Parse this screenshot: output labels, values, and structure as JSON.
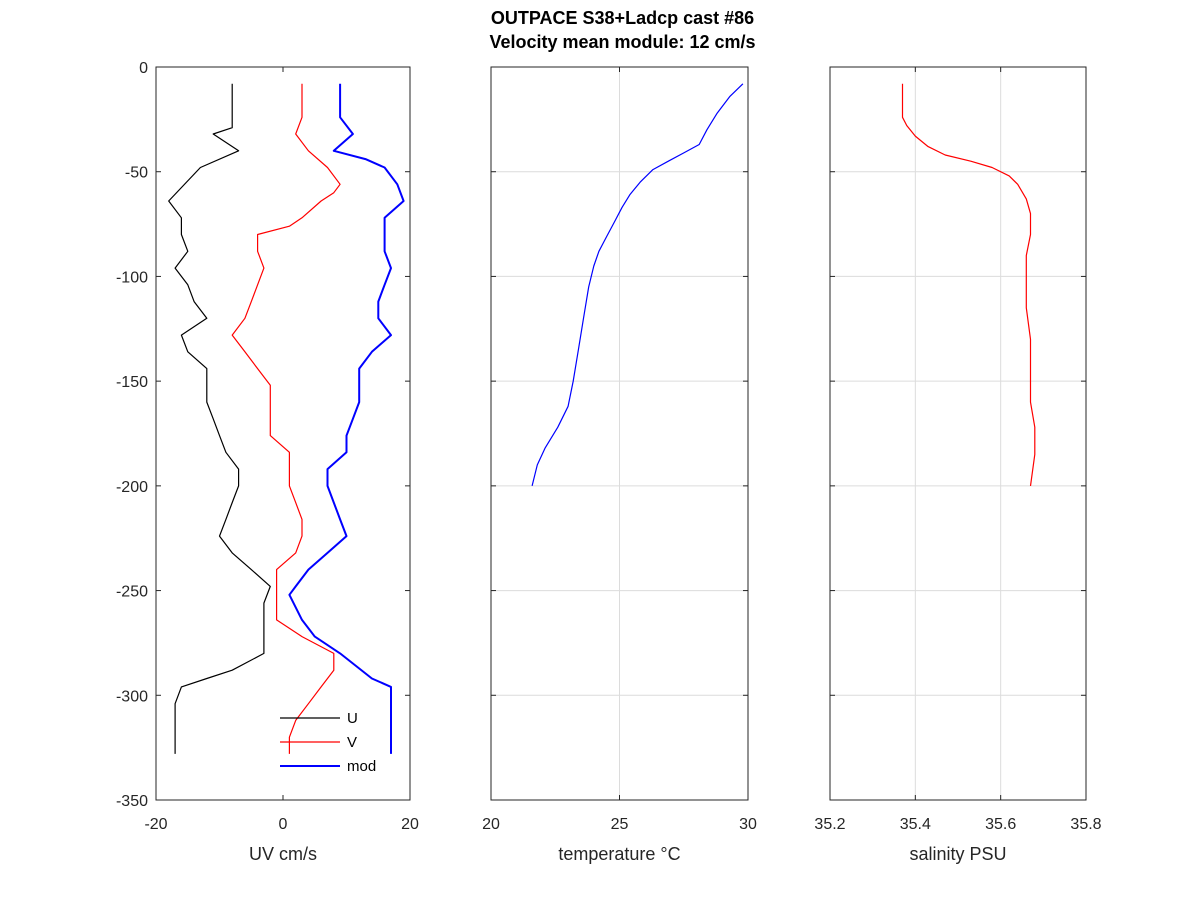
{
  "figure": {
    "title_line1": "OUTPACE S38+Ladcp cast #86",
    "title_line2": "Velocity mean module:  12 cm/s"
  },
  "chart_data": [
    {
      "type": "line",
      "title": "",
      "xlabel": "UV cm/s",
      "ylabel": "",
      "xlim": [
        -20,
        20
      ],
      "ylim": [
        -350,
        0
      ],
      "x_ticks": [
        -20,
        0,
        20
      ],
      "y_ticks": [
        0,
        -50,
        -100,
        -150,
        -200,
        -250,
        -300,
        -350
      ],
      "grid": false,
      "legend": "bottom-right",
      "series": [
        {
          "name": "U",
          "color": "#000000",
          "points": [
            [
              -8,
              -8
            ],
            [
              -8,
              -29
            ],
            [
              -11,
              -32
            ],
            [
              -7,
              -40
            ],
            [
              -13,
              -48
            ],
            [
              -18,
              -64
            ],
            [
              -16,
              -72
            ],
            [
              -16,
              -80
            ],
            [
              -15,
              -88
            ],
            [
              -17,
              -96
            ],
            [
              -15,
              -104
            ],
            [
              -14,
              -112
            ],
            [
              -12,
              -120
            ],
            [
              -16,
              -128
            ],
            [
              -15,
              -136
            ],
            [
              -12,
              -144
            ],
            [
              -12,
              -152
            ],
            [
              -12,
              -160
            ],
            [
              -11,
              -168
            ],
            [
              -10,
              -176
            ],
            [
              -9,
              -184
            ],
            [
              -7,
              -192
            ],
            [
              -7,
              -200
            ],
            [
              -8,
              -208
            ],
            [
              -9,
              -216
            ],
            [
              -10,
              -224
            ],
            [
              -8,
              -232
            ],
            [
              -5,
              -240
            ],
            [
              -2,
              -248
            ],
            [
              -3,
              -256
            ],
            [
              -3,
              -264
            ],
            [
              -3,
              -272
            ],
            [
              -3,
              -280
            ],
            [
              -8,
              -288
            ],
            [
              -12,
              -292
            ],
            [
              -16,
              -296
            ],
            [
              -17,
              -304
            ],
            [
              -17,
              -312
            ],
            [
              -17,
              -320
            ],
            [
              -17,
              -328
            ]
          ]
        },
        {
          "name": "V",
          "color": "#ff0000",
          "points": [
            [
              3,
              -8
            ],
            [
              3,
              -16
            ],
            [
              3,
              -24
            ],
            [
              2,
              -32
            ],
            [
              4,
              -40
            ],
            [
              7,
              -48
            ],
            [
              9,
              -56
            ],
            [
              8,
              -60
            ],
            [
              6,
              -64
            ],
            [
              3,
              -72
            ],
            [
              1,
              -76
            ],
            [
              -4,
              -80
            ],
            [
              -4,
              -88
            ],
            [
              -3,
              -96
            ],
            [
              -4,
              -104
            ],
            [
              -5,
              -112
            ],
            [
              -6,
              -120
            ],
            [
              -8,
              -128
            ],
            [
              -6,
              -136
            ],
            [
              -4,
              -144
            ],
            [
              -2,
              -152
            ],
            [
              -2,
              -160
            ],
            [
              -2,
              -168
            ],
            [
              -2,
              -176
            ],
            [
              1,
              -184
            ],
            [
              1,
              -192
            ],
            [
              1,
              -200
            ],
            [
              2,
              -208
            ],
            [
              3,
              -216
            ],
            [
              3,
              -224
            ],
            [
              2,
              -232
            ],
            [
              -1,
              -240
            ],
            [
              -1,
              -248
            ],
            [
              -1,
              -256
            ],
            [
              -1,
              -264
            ],
            [
              3,
              -272
            ],
            [
              8,
              -280
            ],
            [
              8,
              -288
            ],
            [
              6,
              -296
            ],
            [
              4,
              -304
            ],
            [
              2,
              -312
            ],
            [
              1,
              -320
            ],
            [
              1,
              -328
            ]
          ]
        },
        {
          "name": "mod",
          "color": "#0000ff",
          "points": [
            [
              9,
              -8
            ],
            [
              9,
              -16
            ],
            [
              9,
              -24
            ],
            [
              11,
              -32
            ],
            [
              8,
              -40
            ],
            [
              13,
              -44
            ],
            [
              16,
              -48
            ],
            [
              18,
              -56
            ],
            [
              19,
              -64
            ],
            [
              16,
              -72
            ],
            [
              16,
              -80
            ],
            [
              16,
              -88
            ],
            [
              17,
              -96
            ],
            [
              16,
              -104
            ],
            [
              15,
              -112
            ],
            [
              15,
              -120
            ],
            [
              17,
              -128
            ],
            [
              14,
              -136
            ],
            [
              12,
              -144
            ],
            [
              12,
              -152
            ],
            [
              12,
              -160
            ],
            [
              11,
              -168
            ],
            [
              10,
              -176
            ],
            [
              10,
              -184
            ],
            [
              7,
              -192
            ],
            [
              7,
              -200
            ],
            [
              8,
              -208
            ],
            [
              9,
              -216
            ],
            [
              10,
              -224
            ],
            [
              7,
              -232
            ],
            [
              4,
              -240
            ],
            [
              2,
              -248
            ],
            [
              1,
              -252
            ],
            [
              3,
              -264
            ],
            [
              5,
              -272
            ],
            [
              9,
              -280
            ],
            [
              14,
              -292
            ],
            [
              17,
              -296
            ],
            [
              17,
              -304
            ],
            [
              17,
              -312
            ],
            [
              17,
              -320
            ],
            [
              17,
              -328
            ]
          ]
        }
      ]
    },
    {
      "type": "line",
      "title": "",
      "xlabel": "temperature °C",
      "ylabel": "",
      "xlim": [
        20,
        30
      ],
      "ylim": [
        -350,
        0
      ],
      "x_ticks": [
        20,
        25,
        30
      ],
      "y_ticks": [
        0,
        -50,
        -100,
        -150,
        -200,
        -250,
        -300,
        -350
      ],
      "grid": true,
      "series": [
        {
          "name": "",
          "color": "#0000ff",
          "points": [
            [
              29.8,
              -8
            ],
            [
              29.3,
              -14
            ],
            [
              28.8,
              -22
            ],
            [
              28.4,
              -30
            ],
            [
              28.1,
              -37
            ],
            [
              27.5,
              -41
            ],
            [
              26.9,
              -45
            ],
            [
              26.3,
              -49
            ],
            [
              25.8,
              -55
            ],
            [
              25.4,
              -61
            ],
            [
              25.1,
              -67
            ],
            [
              24.8,
              -74
            ],
            [
              24.5,
              -81
            ],
            [
              24.2,
              -88
            ],
            [
              24.0,
              -95
            ],
            [
              23.8,
              -105
            ],
            [
              23.6,
              -120
            ],
            [
              23.4,
              -135
            ],
            [
              23.2,
              -150
            ],
            [
              23.0,
              -162
            ],
            [
              22.6,
              -172
            ],
            [
              22.1,
              -182
            ],
            [
              21.8,
              -190
            ],
            [
              21.6,
              -200
            ]
          ]
        }
      ]
    },
    {
      "type": "line",
      "title": "",
      "xlabel": "salinity PSU",
      "ylabel": "",
      "xlim": [
        35.2,
        35.8
      ],
      "ylim": [
        -350,
        0
      ],
      "x_ticks": [
        35.2,
        35.4,
        35.6,
        35.8
      ],
      "y_ticks": [
        0,
        -50,
        -100,
        -150,
        -200,
        -250,
        -300,
        -350
      ],
      "grid": true,
      "series": [
        {
          "name": "",
          "color": "#ff0000",
          "points": [
            [
              35.37,
              -8
            ],
            [
              35.37,
              -16
            ],
            [
              35.37,
              -24
            ],
            [
              35.38,
              -28
            ],
            [
              35.4,
              -33
            ],
            [
              35.43,
              -38
            ],
            [
              35.47,
              -42
            ],
            [
              35.53,
              -45
            ],
            [
              35.58,
              -48
            ],
            [
              35.62,
              -52
            ],
            [
              35.64,
              -56
            ],
            [
              35.66,
              -63
            ],
            [
              35.67,
              -70
            ],
            [
              35.67,
              -80
            ],
            [
              35.66,
              -90
            ],
            [
              35.66,
              -100
            ],
            [
              35.66,
              -115
            ],
            [
              35.67,
              -130
            ],
            [
              35.67,
              -145
            ],
            [
              35.67,
              -160
            ],
            [
              35.68,
              -172
            ],
            [
              35.68,
              -185
            ],
            [
              35.67,
              -200
            ]
          ]
        }
      ]
    }
  ]
}
